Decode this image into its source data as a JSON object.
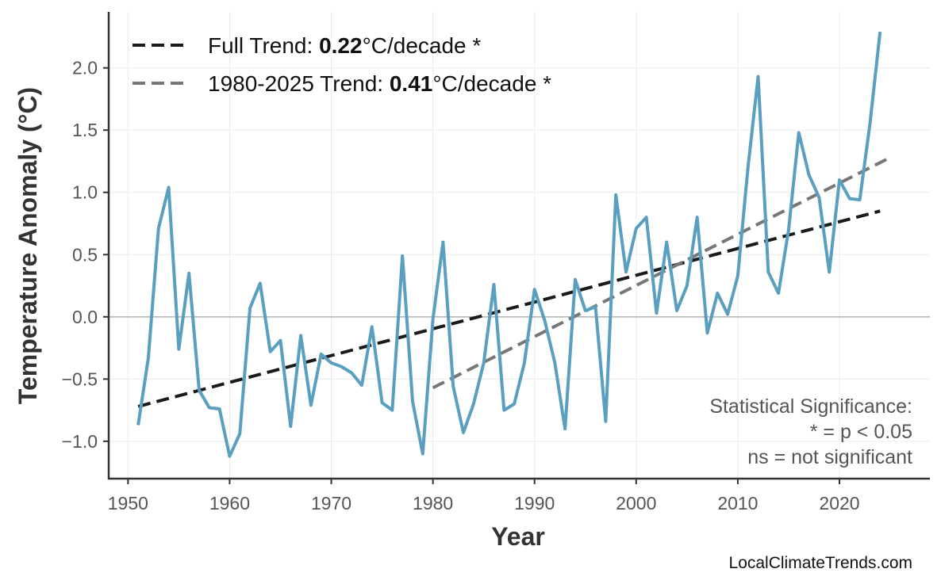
{
  "chart_data": {
    "type": "line",
    "title": "",
    "xlabel": "Year",
    "ylabel": "Temperature Anomaly (°C)",
    "xlim": [
      1948.1,
      2028.9
    ],
    "ylim": [
      -1.3,
      2.45
    ],
    "xticks": [
      1950,
      1960,
      1970,
      1980,
      1990,
      2000,
      2010,
      2020
    ],
    "yticks": [
      -1.0,
      -0.5,
      0.0,
      0.5,
      1.0,
      1.5,
      2.0
    ],
    "ytick_labels": [
      "−1.0",
      "−0.5",
      "0.0",
      "0.5",
      "1.0",
      "1.5",
      "2.0"
    ],
    "grid": true,
    "legend_position": "top-left",
    "series": [
      {
        "color": "#5a9fc0",
        "x": [
          1951,
          1952,
          1953,
          1954,
          1955,
          1956,
          1957,
          1958,
          1959,
          1960,
          1961,
          1962,
          1963,
          1964,
          1965,
          1966,
          1967,
          1968,
          1969,
          1970,
          1971,
          1972,
          1973,
          1974,
          1975,
          1976,
          1977,
          1978,
          1979,
          1980,
          1981,
          1982,
          1983,
          1984,
          1985,
          1986,
          1987,
          1988,
          1989,
          1990,
          1991,
          1992,
          1993,
          1994,
          1995,
          1996,
          1997,
          1998,
          1999,
          2000,
          2001,
          2002,
          2003,
          2004,
          2005,
          2006,
          2007,
          2008,
          2009,
          2010,
          2011,
          2012,
          2013,
          2014,
          2015,
          2016,
          2017,
          2018,
          2019,
          2020,
          2021,
          2022,
          2023,
          2024
        ],
        "y": [
          -0.87,
          -0.33,
          0.71,
          1.04,
          -0.26,
          0.35,
          -0.59,
          -0.73,
          -0.74,
          -1.12,
          -0.94,
          0.07,
          0.27,
          -0.28,
          -0.19,
          -0.88,
          -0.15,
          -0.71,
          -0.3,
          -0.37,
          -0.4,
          -0.45,
          -0.55,
          -0.08,
          -0.69,
          -0.75,
          0.49,
          -0.68,
          -1.1,
          -0.02,
          0.6,
          -0.56,
          -0.93,
          -0.7,
          -0.37,
          0.26,
          -0.75,
          -0.7,
          -0.37,
          0.22,
          -0.03,
          -0.37,
          -0.9,
          0.3,
          0.05,
          0.08,
          -0.84,
          0.98,
          0.36,
          0.71,
          0.8,
          0.03,
          0.6,
          0.05,
          0.25,
          0.8,
          -0.13,
          0.19,
          0.02,
          0.33,
          1.2,
          1.93,
          0.36,
          0.19,
          0.7,
          1.48,
          1.14,
          0.96,
          0.36,
          1.1,
          0.95,
          0.94,
          1.55,
          2.29
        ]
      }
    ],
    "trends": [
      {
        "label_prefix": "Full Trend: ",
        "value": "0.22",
        "label_suffix": "°C/decade *",
        "color": "#1a1a1a",
        "x": [
          1951,
          2024
        ],
        "y": [
          -0.72,
          0.85
        ]
      },
      {
        "label_prefix": "1980-2025 Trend: ",
        "value": "0.41",
        "label_suffix": "°C/decade *",
        "color": "#777777",
        "x": [
          1980,
          2025
        ],
        "y": [
          -0.57,
          1.28
        ]
      }
    ],
    "annotation": [
      "Statistical Significance:",
      "* = p < 0.05",
      "ns = not significant"
    ],
    "watermark": "LocalClimateTrends.com"
  }
}
